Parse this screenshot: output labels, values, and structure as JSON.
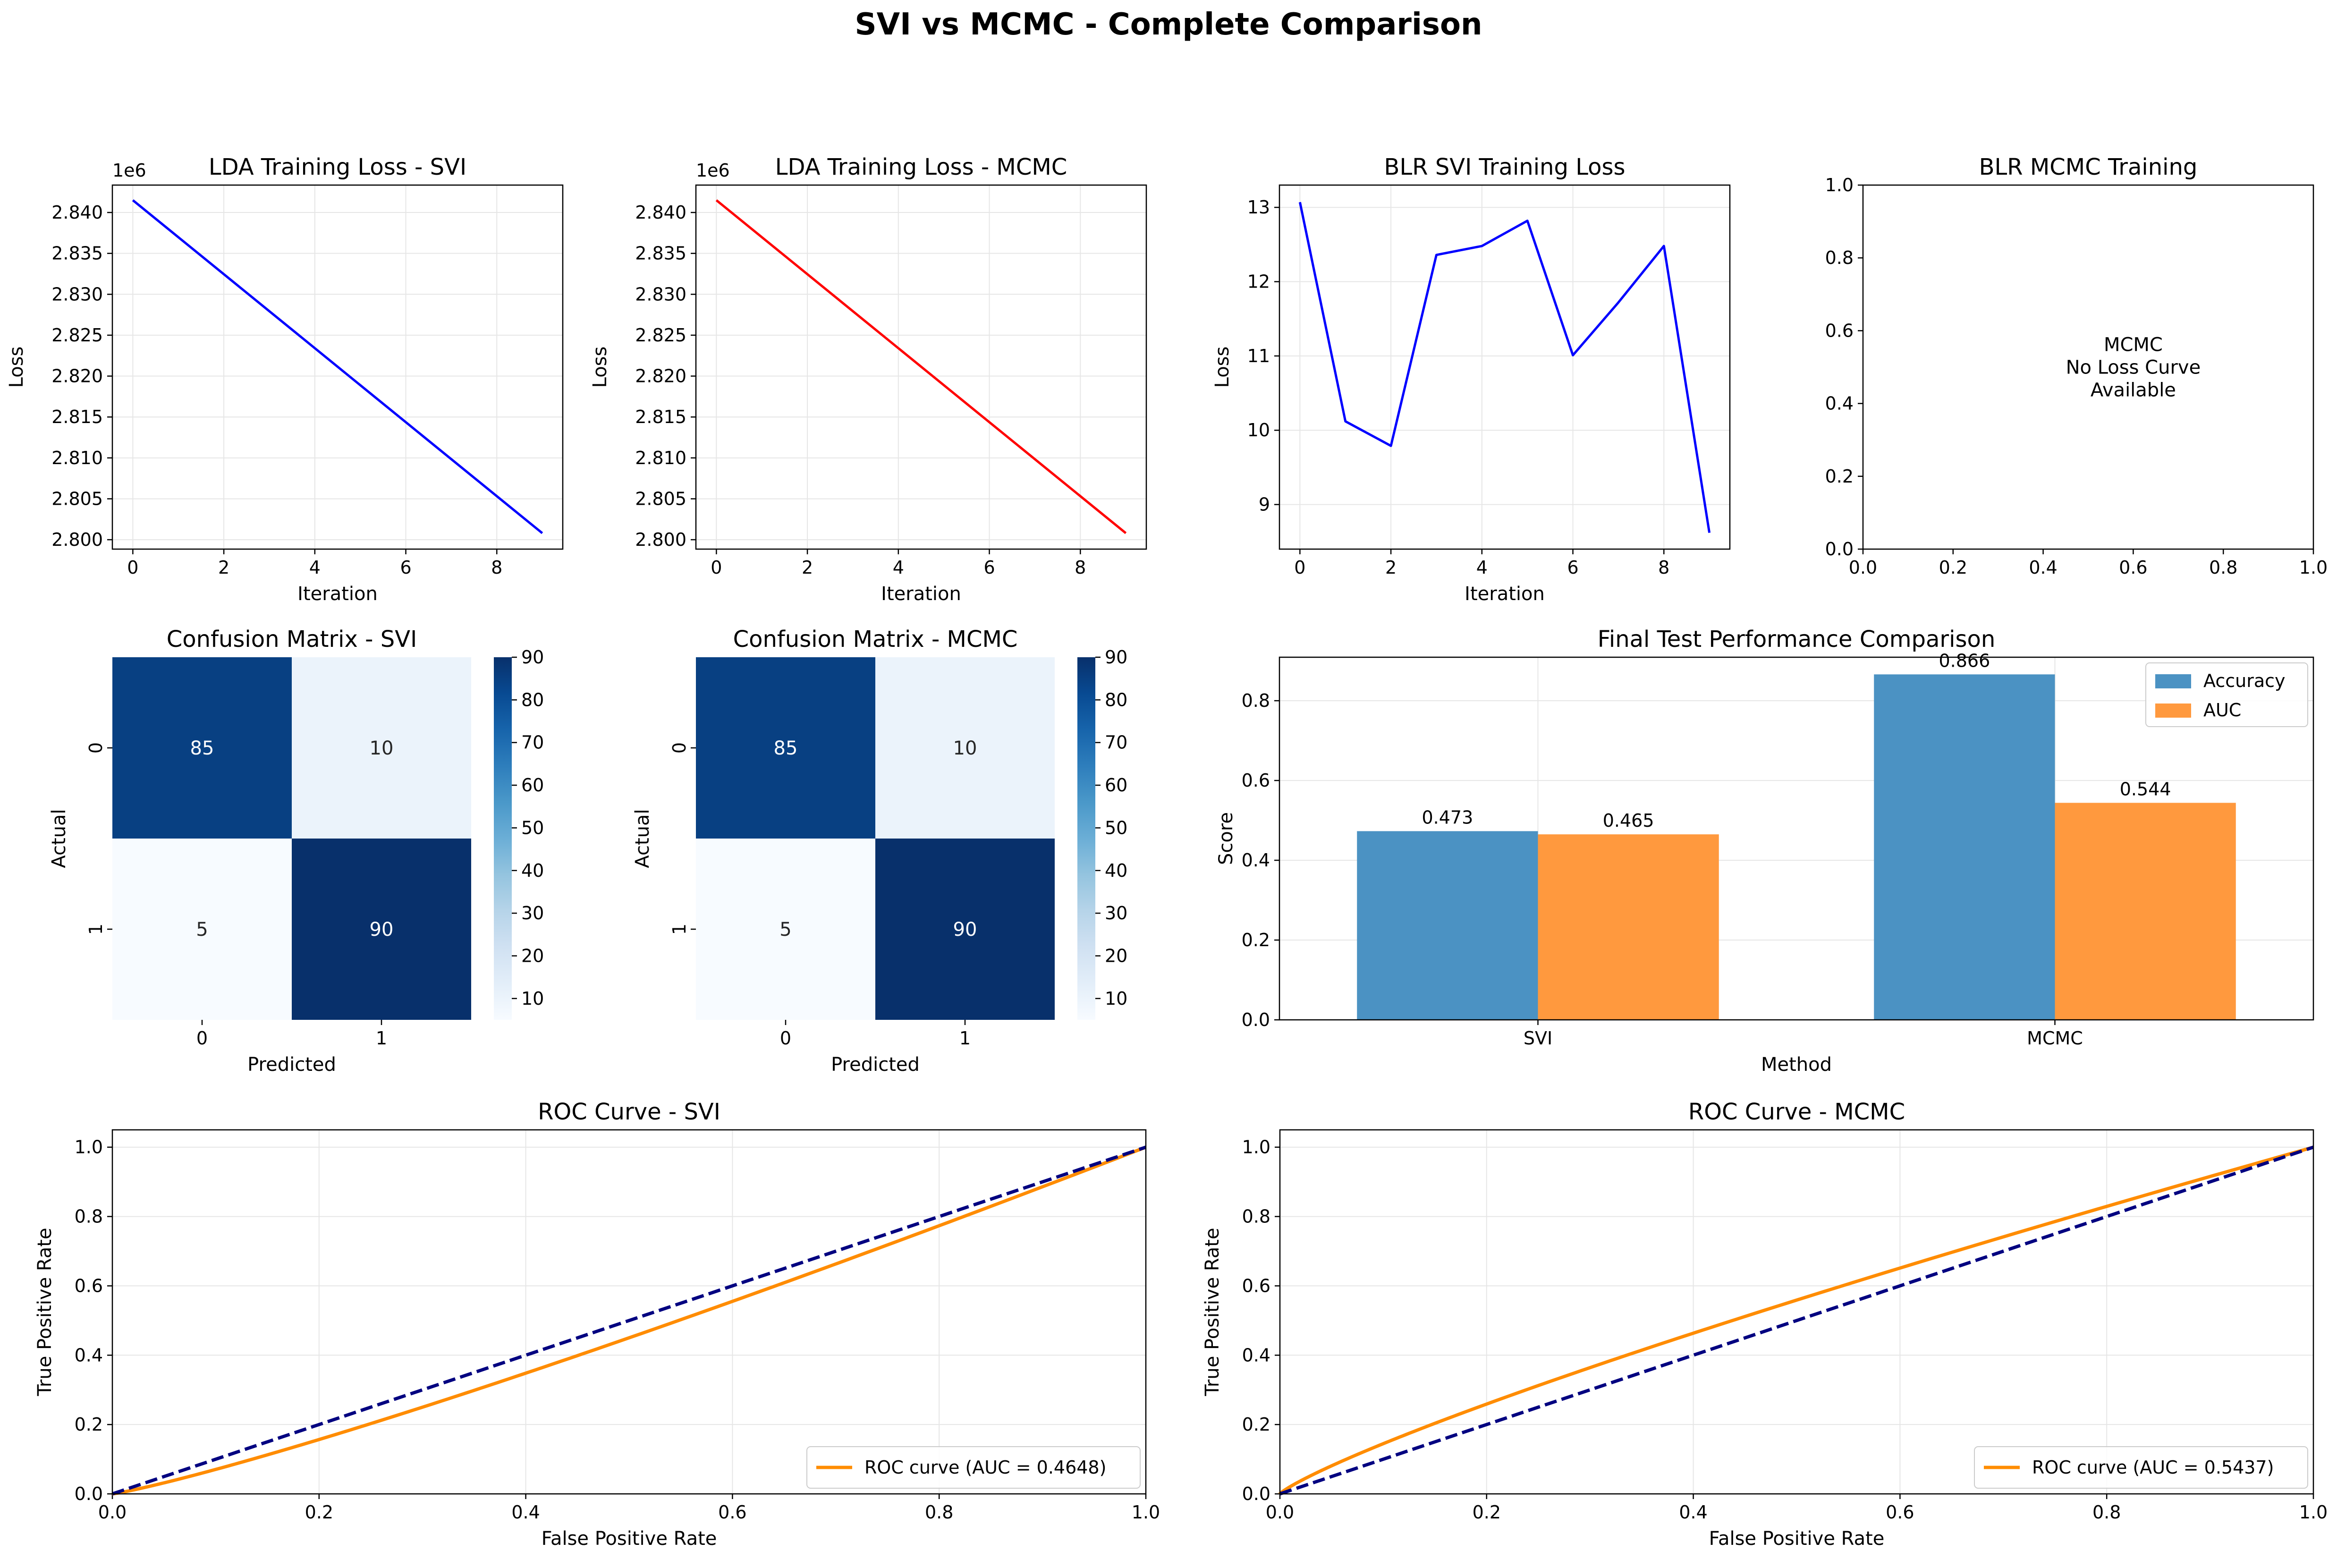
{
  "suptitle": "SVI vs MCMC - Complete Comparison",
  "chart_data": [
    {
      "id": "lda-svi",
      "type": "line",
      "title": "LDA Training Loss - SVI",
      "xlabel": "Iteration",
      "ylabel": "Loss",
      "offset_text": "1e6",
      "color": "#0000ff",
      "x": [
        0,
        9
      ],
      "y": [
        2.8415,
        2.8008
      ],
      "xlim": [
        -0.45,
        9.45
      ],
      "ylim": [
        2.79885,
        2.84335
      ],
      "xticks": [
        0,
        2,
        4,
        6,
        8
      ],
      "yticks": [
        2.8,
        2.805,
        2.81,
        2.815,
        2.82,
        2.825,
        2.83,
        2.835,
        2.84
      ],
      "ytick_labels": [
        "2.800",
        "2.805",
        "2.810",
        "2.815",
        "2.820",
        "2.825",
        "2.830",
        "2.835",
        "2.840"
      ],
      "grid": true
    },
    {
      "id": "lda-mcmc",
      "type": "line",
      "title": "LDA Training Loss - MCMC",
      "xlabel": "Iteration",
      "ylabel": "Loss",
      "offset_text": "1e6",
      "color": "#ff0000",
      "x": [
        0,
        9
      ],
      "y": [
        2.8415,
        2.8008
      ],
      "xlim": [
        -0.45,
        9.45
      ],
      "ylim": [
        2.79885,
        2.84335
      ],
      "xticks": [
        0,
        2,
        4,
        6,
        8
      ],
      "yticks": [
        2.8,
        2.805,
        2.81,
        2.815,
        2.82,
        2.825,
        2.83,
        2.835,
        2.84
      ],
      "ytick_labels": [
        "2.800",
        "2.805",
        "2.810",
        "2.815",
        "2.820",
        "2.825",
        "2.830",
        "2.835",
        "2.840"
      ],
      "grid": true
    },
    {
      "id": "blr-svi",
      "type": "line",
      "title": "BLR SVI Training Loss",
      "xlabel": "Iteration",
      "ylabel": "Loss",
      "color": "#0000ff",
      "x": [
        0,
        1,
        2,
        3,
        4,
        5,
        6,
        7,
        8,
        9
      ],
      "y": [
        13.07,
        10.12,
        9.79,
        12.36,
        12.48,
        12.82,
        11.01,
        11.72,
        12.48,
        8.62
      ],
      "xlim": [
        -0.45,
        9.45
      ],
      "ylim": [
        8.4,
        13.3
      ],
      "xticks": [
        0,
        2,
        4,
        6,
        8
      ],
      "yticks": [
        9,
        10,
        11,
        12,
        13
      ],
      "ytick_labels": [
        "9",
        "10",
        "11",
        "12",
        "13"
      ],
      "grid": true
    },
    {
      "id": "blr-mcmc",
      "type": "text",
      "title": "BLR MCMC Training",
      "annotation": [
        "MCMC",
        "No Loss Curve",
        "Available"
      ],
      "xlim": [
        0,
        1
      ],
      "ylim": [
        0,
        1
      ],
      "xticks": [
        0,
        0.2,
        0.4,
        0.6,
        0.8,
        1.0
      ],
      "xtick_labels": [
        "0.0",
        "0.2",
        "0.4",
        "0.6",
        "0.8",
        "1.0"
      ],
      "yticks": [
        0,
        0.2,
        0.4,
        0.6,
        0.8,
        1.0
      ],
      "ytick_labels": [
        "0.0",
        "0.2",
        "0.4",
        "0.6",
        "0.8",
        "1.0"
      ],
      "grid": false
    },
    {
      "id": "cm-svi",
      "type": "heatmap",
      "title": "Confusion Matrix - SVI",
      "xlabel": "Predicted",
      "ylabel": "Actual",
      "row_labels": [
        "0",
        "1"
      ],
      "col_labels": [
        "0",
        "1"
      ],
      "values": [
        [
          85,
          10
        ],
        [
          5,
          90
        ]
      ],
      "colorbar_ticks": [
        10,
        20,
        30,
        40,
        50,
        60,
        70,
        80,
        90
      ],
      "colormap": "Blues"
    },
    {
      "id": "cm-mcmc",
      "type": "heatmap",
      "title": "Confusion Matrix - MCMC",
      "xlabel": "Predicted",
      "ylabel": "Actual",
      "row_labels": [
        "0",
        "1"
      ],
      "col_labels": [
        "0",
        "1"
      ],
      "values": [
        [
          85,
          10
        ],
        [
          5,
          90
        ]
      ],
      "colorbar_ticks": [
        10,
        20,
        30,
        40,
        50,
        60,
        70,
        80,
        90
      ],
      "colormap": "Blues"
    },
    {
      "id": "perf",
      "type": "bar",
      "title": "Final Test Performance Comparison",
      "xlabel": "Method",
      "ylabel": "Score",
      "categories": [
        "SVI",
        "MCMC"
      ],
      "series": [
        {
          "name": "Accuracy",
          "values": [
            0.473,
            0.866
          ],
          "labels": [
            "0.473",
            "0.866"
          ],
          "color": "#4b92c3"
        },
        {
          "name": "AUC",
          "values": [
            0.465,
            0.544
          ],
          "labels": [
            "0.465",
            "0.544"
          ],
          "color": "#ff993e"
        }
      ],
      "ylim": [
        0,
        0.909
      ],
      "yticks": [
        0,
        0.2,
        0.4,
        0.6,
        0.8
      ],
      "ytick_labels": [
        "0.0",
        "0.2",
        "0.4",
        "0.6",
        "0.8"
      ],
      "legend": "top-right",
      "grid": true
    },
    {
      "id": "roc-svi",
      "type": "line",
      "title": "ROC Curve - SVI",
      "xlabel": "False Positive Rate",
      "ylabel": "True Positive Rate",
      "xlim": [
        0,
        1
      ],
      "ylim": [
        0,
        1.05
      ],
      "auc": 0.4648,
      "curve_color": "#ff8c00",
      "diag_color": "#000080",
      "legend_label": "ROC curve (AUC = 0.4648)",
      "legend": "lower-right",
      "xticks": [
        0,
        0.2,
        0.4,
        0.6,
        0.8,
        1.0
      ],
      "xtick_labels": [
        "0.0",
        "0.2",
        "0.4",
        "0.6",
        "0.8",
        "1.0"
      ],
      "yticks": [
        0,
        0.2,
        0.4,
        0.6,
        0.8,
        1.0
      ],
      "ytick_labels": [
        "0.0",
        "0.2",
        "0.4",
        "0.6",
        "0.8",
        "1.0"
      ],
      "grid": true
    },
    {
      "id": "roc-mcmc",
      "type": "line",
      "title": "ROC Curve - MCMC",
      "xlabel": "False Positive Rate",
      "ylabel": "True Positive Rate",
      "xlim": [
        0,
        1
      ],
      "ylim": [
        0,
        1.05
      ],
      "auc": 0.5437,
      "curve_color": "#ff8c00",
      "diag_color": "#000080",
      "legend_label": "ROC curve (AUC = 0.5437)",
      "legend": "lower-right",
      "xticks": [
        0,
        0.2,
        0.4,
        0.6,
        0.8,
        1.0
      ],
      "xtick_labels": [
        "0.0",
        "0.2",
        "0.4",
        "0.6",
        "0.8",
        "1.0"
      ],
      "yticks": [
        0,
        0.2,
        0.4,
        0.6,
        0.8,
        1.0
      ],
      "ytick_labels": [
        "0.0",
        "0.2",
        "0.4",
        "0.6",
        "0.8",
        "1.0"
      ],
      "grid": true
    }
  ]
}
